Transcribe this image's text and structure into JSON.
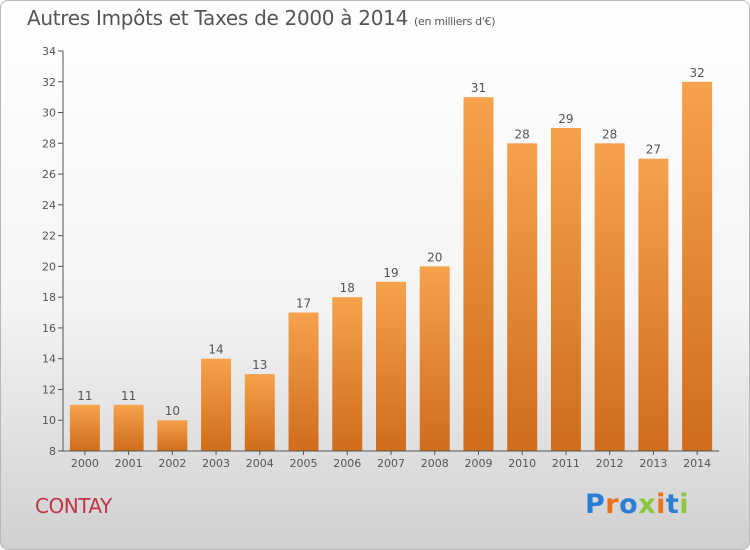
{
  "title": "Autres Impôts et Taxes de 2000 à 2014",
  "unit_note": "(en milliers d'€)",
  "commune": "CONTAY",
  "logo": {
    "text": "Proxiti",
    "letter_colors": [
      "#2a7fd4",
      "#e8731c",
      "#2a7fd4",
      "#8cc63f",
      "#e8731c",
      "#2a7fd4",
      "#8cc63f"
    ]
  },
  "colors": {
    "bar_light": "#f6a24c",
    "bar_dark": "#d06c1a",
    "axis": "#555555",
    "text": "#555555"
  },
  "chart_data": {
    "type": "bar",
    "categories": [
      "2000",
      "2001",
      "2002",
      "2003",
      "2004",
      "2005",
      "2006",
      "2007",
      "2008",
      "2009",
      "2010",
      "2011",
      "2012",
      "2013",
      "2014"
    ],
    "values": [
      11,
      11,
      10,
      14,
      13,
      17,
      18,
      19,
      20,
      31,
      28,
      29,
      28,
      27,
      32
    ],
    "ylim": [
      8,
      34
    ],
    "yticks": [
      8,
      10,
      12,
      14,
      16,
      18,
      20,
      22,
      24,
      26,
      28,
      30,
      32,
      34
    ],
    "grid": false,
    "data_labels": true
  }
}
